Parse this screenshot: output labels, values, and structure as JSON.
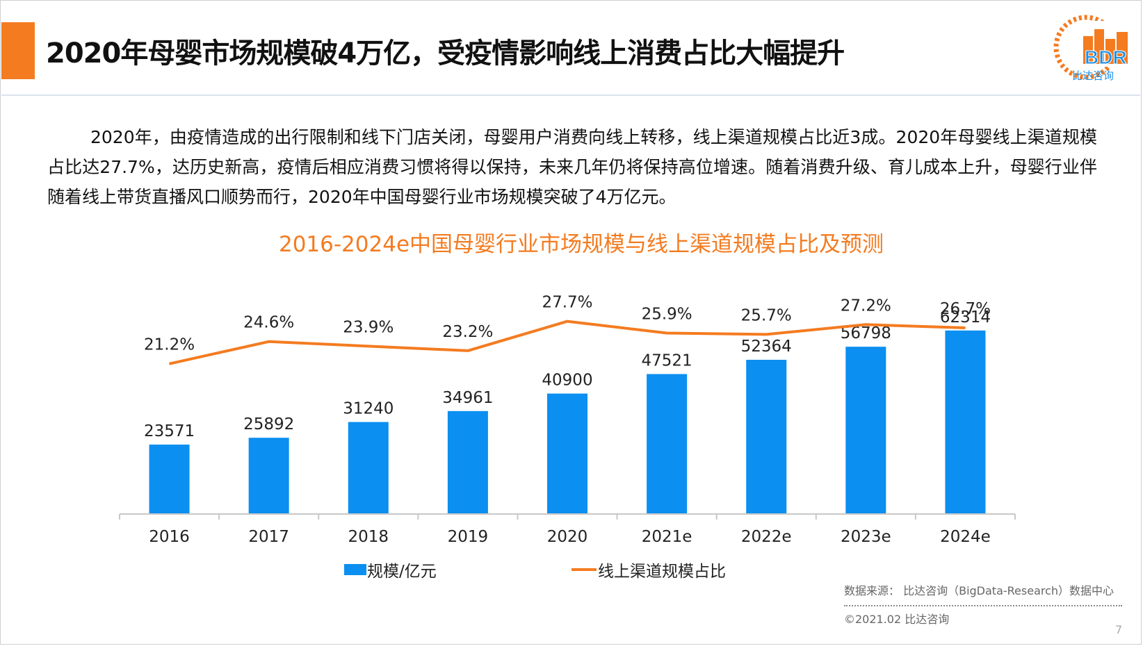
{
  "header": {
    "title": "2020年母婴市场规模破4万亿，受疫情影响线上消费占比大幅提升",
    "accent_color": "#f47b20"
  },
  "logo": {
    "text": "BDR",
    "caption": "比达咨询",
    "bar_color": "#f47b20",
    "text_color": "#1b8fe6"
  },
  "intro": {
    "paragraph": "2020年，由疫情造成的出行限制和线下门店关闭，母婴用户消费向线上转移，线上渠道规模占比近3成。2020年母婴线上渠道规模占比达27.7%，达历史新高，疫情后相应消费习惯将得以保持，未来几年仍将保持高位增速。随着消费升级、育儿成本上升，母婴行业伴随着线上带货直播风口顺势而行，2020年中国母婴行业市场规模突破了4万亿元。"
  },
  "chart_data": {
    "type": "bar",
    "title": "2016-2024e中国母婴行业市场规模与线上渠道规模占比及预测",
    "categories": [
      "2016",
      "2017",
      "2018",
      "2019",
      "2020",
      "2021e",
      "2022e",
      "2023e",
      "2024e"
    ],
    "series": [
      {
        "name": "规模/亿元",
        "type": "bar",
        "color": "#0b8ff0",
        "values": [
          23571,
          25892,
          31240,
          34961,
          40900,
          47521,
          52364,
          56798,
          62314
        ],
        "labels": [
          "23571",
          "25892",
          "31240",
          "34961",
          "40900",
          "47521",
          "52364",
          "56798",
          "62314"
        ]
      },
      {
        "name": "线上渠道规模占比",
        "type": "line",
        "color": "#f47b20",
        "values": [
          21.2,
          24.6,
          23.9,
          23.2,
          27.7,
          25.9,
          25.7,
          27.2,
          26.7
        ],
        "labels": [
          "21.2%",
          "24.6%",
          "23.9%",
          "23.2%",
          "27.7%",
          "25.9%",
          "25.7%",
          "27.2%",
          "26.7%"
        ]
      }
    ],
    "legend_position": "bottom",
    "grid": false
  },
  "footer": {
    "source": "数据来源： 比达咨询（BigData-Research）数据中心",
    "copyright": "©2021.02  比达咨询",
    "page_number": "7"
  }
}
